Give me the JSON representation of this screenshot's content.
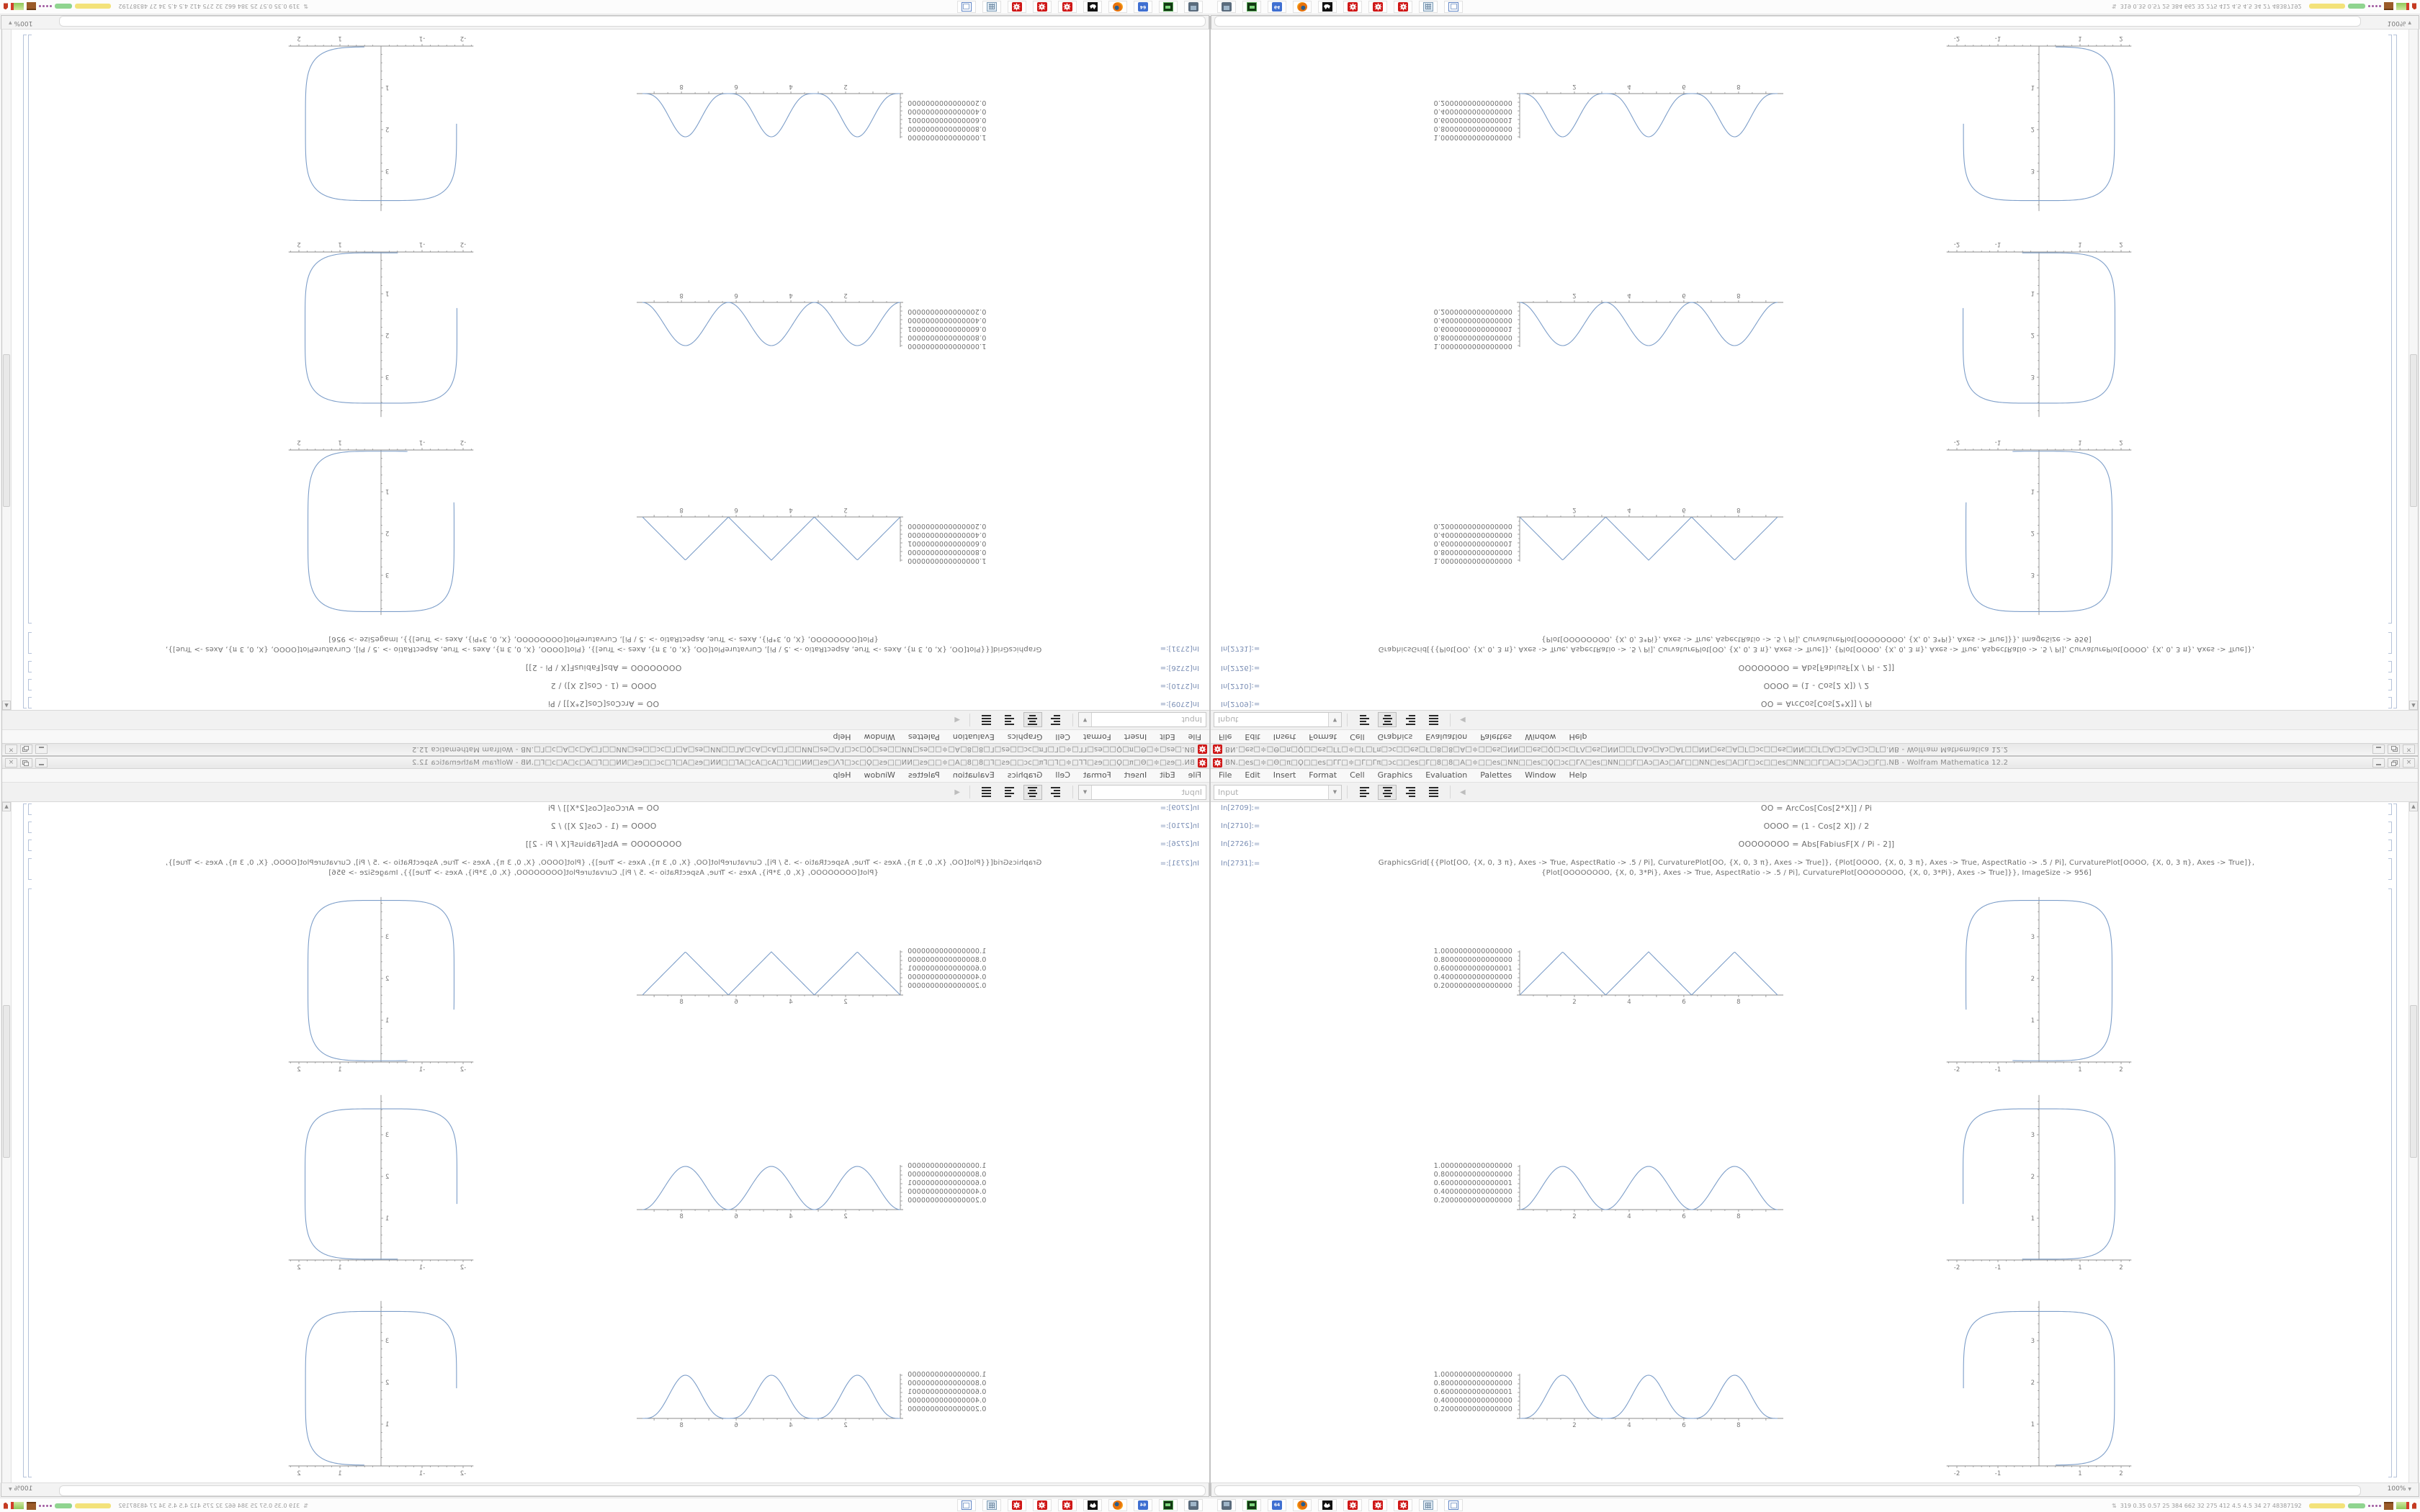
{
  "window": {
    "title": "ΒΝ.□es□≑□Θ□π□Ϙ□□es□ΓΓ□≑□Γ□Γπ□ɔc□□es□Γ□8□8□Α□≑□□es□ΝΝ□□es□Ϙ□ɔc□ΓΛ□es□ΝΝ□□Γ□Αɔ□Αɔ□ΑΓ□□ΝΝ□es□Α□Γ□ɔc□□es□ΝΝ□□Γ□Α□ɔ□Α□ɔ□Γ□.NB - Wolfram Mathematica 12.2",
    "app_icon": "mathematica-spikey",
    "controls": {
      "minimize": "minimize",
      "restore": "restore",
      "close": "×"
    },
    "menu": {
      "items": [
        "File",
        "Edit",
        "Insert",
        "Format",
        "Cell",
        "Graphics",
        "Evaluation",
        "Palettes",
        "Window",
        "Help"
      ]
    },
    "toolbar": {
      "style_dropdown_value": "Input",
      "dropdown_arrow": "▼",
      "alignment_icons": [
        "align-left",
        "align-center",
        "align-right",
        "justify"
      ],
      "active_alignment": "align-center",
      "back_arrow": "◀"
    },
    "zoom_control": {
      "value": "100%",
      "arrow": "▼"
    },
    "cells": [
      {
        "label": "In[2709]:=",
        "code": "OO = ArcCos[Cos[2*X]] / Pi"
      },
      {
        "label": "In[2710]:=",
        "code": "OOOO = (1 - Cos[2 X]) / 2"
      },
      {
        "label": "In[2726]:=",
        "code": "OOOOOOOO = Abs[FabiusF[X / Pi - 2]]"
      },
      {
        "label": "In[2731]:=",
        "code": "GraphicsGrid[{{Plot[OO, {X, 0, 3 π}, Axes -> True, AspectRatio -> .5 / Pi], CurvaturePlot[OO, {X, 0, 3 π}, Axes -> True]}, {Plot[OOOO, {X, 0, 3 π}, Axes -> True, AspectRatio -> .5 / Pi], CurvaturePlot[OOOO, {X, 0, 3 π}, Axes -> True]},",
        "code2": "{Plot[OOOOOOOO, {X, 0, 3*Pi}, Axes -> True, AspectRatio -> .5 / Pi], CurvaturePlot[OOOOOOOO, {X, 0, 3*Pi}, Axes -> True]}}, ImageSize -> 956]"
      }
    ]
  },
  "taskbar": {
    "app_buttons": [
      "screenshot-tool",
      "disk-utility",
      "c64-emulator",
      "firefox",
      "gimp",
      "mathematica-1",
      "mathematica-2",
      "mathematica-3",
      "calculator",
      "show-desktop"
    ],
    "floppy_label": "64",
    "updown_arrows": "⇅",
    "stats_text": "319 0.35 0.57 25  384 662  32  275 412  4.5  4.5  34  27  48387192"
  },
  "colors": {
    "curve": "#7d9ec9",
    "axis": "#8c8c8c",
    "tick_label": "#777777",
    "accent_red": "#cf1717",
    "cell_bracket": "#b6c3da",
    "in_label": "#7a8eb4"
  },
  "chart_data": [
    {
      "type": "line",
      "row": 1,
      "panel": "plot",
      "function": "OO = ArcCos[Cos[2 X]]/Pi",
      "shape": "triangle",
      "x_range": [
        0,
        9.4248
      ],
      "y_range": [
        0,
        1
      ],
      "x_ticks": [
        2,
        4,
        6,
        8
      ],
      "y_tick_labels": [
        "1.0000000000000000",
        "0.8000000000000000",
        "0.6000000000000001",
        "0.4000000000000000",
        "0.2000000000000000"
      ]
    },
    {
      "type": "line",
      "row": 1,
      "panel": "curvature",
      "function": "CurvaturePlot[OO]",
      "shape": "rounded-open-loop",
      "x_range": [
        -2.2,
        2.2
      ],
      "y_range": [
        0,
        3.95
      ],
      "x_ticks": [
        -2,
        -1,
        1,
        2
      ],
      "y_ticks": [
        1,
        2,
        3
      ],
      "loop": {
        "cx": 0,
        "cy": 1.95,
        "rx": 1.78,
        "ry": 1.92,
        "squareness": 0.45,
        "theta_start": 186,
        "theta_end": -96
      }
    },
    {
      "type": "line",
      "row": 2,
      "panel": "plot",
      "function": "OOOO = (1 - Cos[2 X])/2",
      "shape": "sin2",
      "x_range": [
        0,
        9.4248
      ],
      "y_range": [
        0,
        1
      ],
      "x_ticks": [
        2,
        4,
        6,
        8
      ],
      "y_tick_labels": [
        "1.0000000000000000",
        "0.8000000000000000",
        "0.6000000000000001",
        "0.4000000000000000",
        "0.2000000000000000"
      ]
    },
    {
      "type": "line",
      "row": 2,
      "panel": "curvature",
      "function": "CurvaturePlot[OOOO]",
      "shape": "rounded-open-loop",
      "x_range": [
        -2.2,
        2.2
      ],
      "y_range": [
        0,
        3.95
      ],
      "x_ticks": [
        -2,
        -1,
        1,
        2
      ],
      "y_ticks": [
        1,
        2,
        3
      ],
      "loop": {
        "cx": 0,
        "cy": 1.82,
        "rx": 1.85,
        "ry": 1.8,
        "squareness": 0.45,
        "theta_start": 183,
        "theta_end": -92
      }
    },
    {
      "type": "line",
      "row": 3,
      "panel": "plot",
      "function": "OOOOOOOO = Abs[FabiusF[X/Pi - 2]]",
      "shape": "fabius",
      "x_range": [
        0,
        9.4248
      ],
      "y_range": [
        0,
        1
      ],
      "x_ticks": [
        2,
        4,
        6,
        8
      ],
      "y_tick_labels": [
        "1.0000000000000000",
        "0.8000000000000000",
        "0.6000000000000001",
        "0.4000000000000000",
        "0.2000000000000000"
      ]
    },
    {
      "type": "line",
      "row": 3,
      "panel": "curvature",
      "function": "CurvaturePlot[OOOOOOOO]",
      "shape": "rounded-open-loop",
      "x_range": [
        -2.2,
        2.2
      ],
      "y_range": [
        0,
        3.95
      ],
      "x_ticks": [
        -2,
        -1,
        1,
        2
      ],
      "y_ticks": [
        1,
        2,
        3
      ],
      "loop": {
        "cx": 0,
        "cy": 1.86,
        "rx": 1.84,
        "ry": 1.84,
        "squareness": 0.45,
        "theta_start": 180,
        "theta_end": -88
      }
    }
  ]
}
